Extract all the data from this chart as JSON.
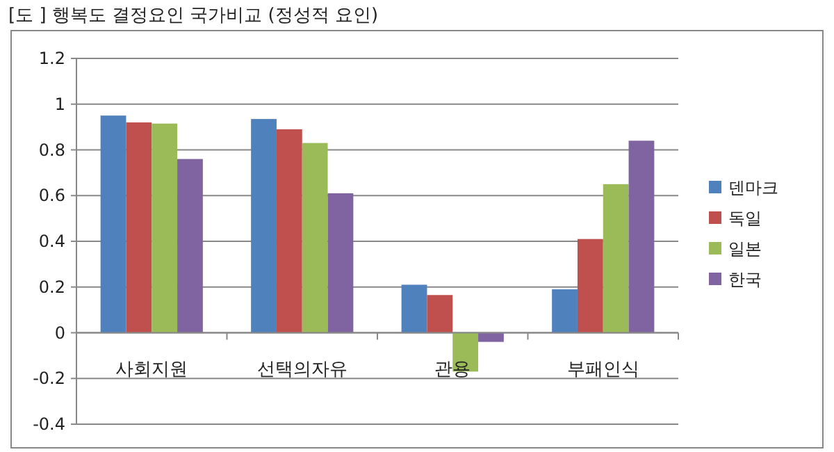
{
  "chart_data": {
    "type": "bar",
    "title": "[도 ] 행복도 결정요인 국가비교 (정성적 요인)",
    "categories": [
      "사회지원",
      "선택의자유",
      "관용",
      "부패인식"
    ],
    "series": [
      {
        "name": "덴마크",
        "color": "#4f81bd",
        "values": [
          0.95,
          0.935,
          0.21,
          0.19
        ]
      },
      {
        "name": "독일",
        "color": "#c0504d",
        "values": [
          0.92,
          0.89,
          0.165,
          0.41
        ]
      },
      {
        "name": "일본",
        "color": "#9bbb59",
        "values": [
          0.915,
          0.83,
          -0.17,
          0.65
        ]
      },
      {
        "name": "한국",
        "color": "#8064a2",
        "values": [
          0.76,
          0.61,
          -0.04,
          0.84
        ]
      }
    ],
    "ylim": [
      -0.4,
      1.2
    ],
    "yticks": [
      -0.4,
      -0.2,
      0,
      0.2,
      0.4,
      0.6,
      0.8,
      1,
      1.2
    ],
    "grid": "y",
    "legend": "right"
  }
}
